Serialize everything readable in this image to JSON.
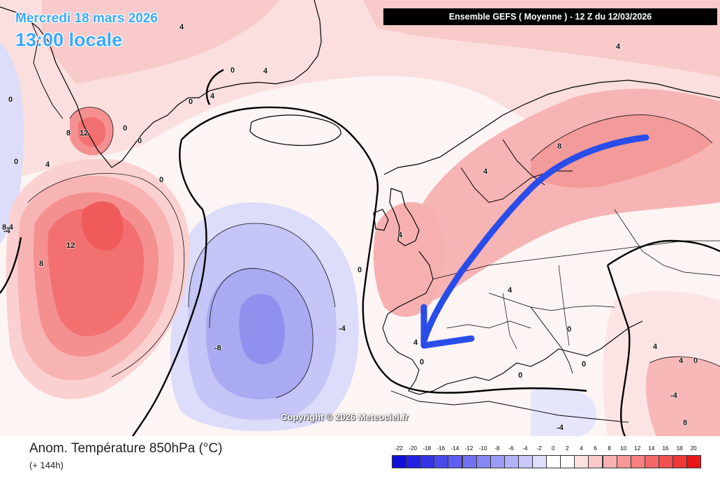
{
  "map": {
    "date_text": "Mercredi 18 mars 2026",
    "time_text": "13:00 locale",
    "model_text": "Ensemble GEFS  ( Moyenne )  -  12 Z du 12/03/2026",
    "copyright_text": "Copyright © 2026 Meteociel.fr",
    "annotation_arrow_color": "#2a4dea",
    "contour_labels": [
      "4",
      "0",
      "4",
      "0",
      "4",
      "0",
      "0",
      "-4",
      "8",
      "12",
      "0",
      "0",
      "4",
      "0",
      "12",
      "8",
      "8-4",
      "-8",
      "-4",
      "0",
      "4",
      "4",
      "8",
      "4",
      "4",
      "0",
      "0",
      "0",
      "0",
      "4",
      "4",
      "0",
      "-4",
      "-4",
      "8",
      "4"
    ]
  },
  "footer": {
    "variable_title": "Anom. Température 850hPa (°C)",
    "lead_time": "(+ 144h)"
  },
  "legend": {
    "ticks": [
      "-22",
      "-20",
      "-18",
      "-16",
      "-14",
      "-12",
      "-10",
      "-8",
      "-6",
      "-4",
      "-2",
      "0",
      "2",
      "4",
      "6",
      "8",
      "10",
      "12",
      "14",
      "16",
      "18",
      "20"
    ],
    "colors": [
      "#1010d8",
      "#2222e0",
      "#3535e6",
      "#4a4aeb",
      "#5e5ef0",
      "#7272f2",
      "#8787f4",
      "#9c9cf6",
      "#b2b2f8",
      "#c8c8fa",
      "#dedefc",
      "#ffffff",
      "#ffffff",
      "#fde1e1",
      "#fbc8c8",
      "#f9b0b0",
      "#f79898",
      "#f58080",
      "#f36868",
      "#f15050",
      "#ee3838",
      "#e81818"
    ]
  }
}
